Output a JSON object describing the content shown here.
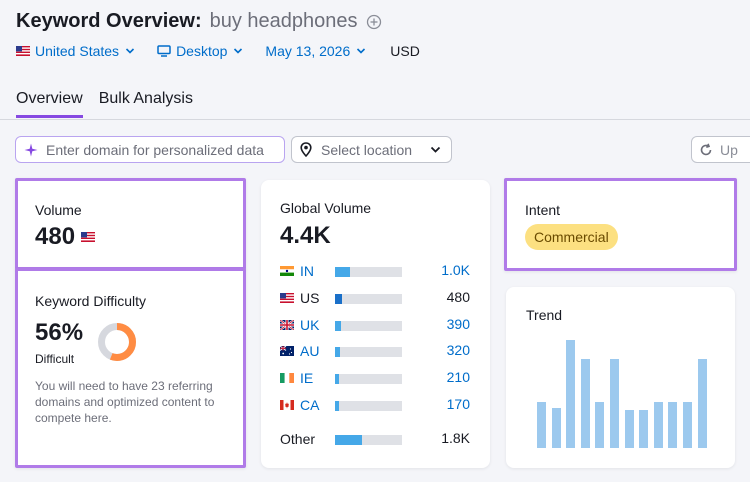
{
  "header": {
    "title": "Keyword Overview:",
    "keyword": "buy headphones",
    "filters": {
      "country": "United States",
      "device": "Desktop",
      "date": "May 13, 2026",
      "currency": "USD"
    }
  },
  "tabs": [
    {
      "label": "Overview",
      "active": true
    },
    {
      "label": "Bulk Analysis",
      "active": false
    }
  ],
  "controls": {
    "domain_placeholder": "Enter domain for personalized data",
    "location_placeholder": "Select location",
    "update_label": "Up"
  },
  "volume": {
    "label": "Volume",
    "value": "480"
  },
  "keyword_difficulty": {
    "label": "Keyword Difficulty",
    "value": "56%",
    "level": "Difficult",
    "fraction": 0.56,
    "description": "You will need to have 23 referring domains and optimized content to compete here."
  },
  "global_volume": {
    "label": "Global Volume",
    "value": "4.4K",
    "rows": [
      {
        "code": "IN",
        "value": "1.0K",
        "share": 0.23,
        "flag": "in",
        "linked": true
      },
      {
        "code": "US",
        "value": "480",
        "share": 0.11,
        "flag": "us",
        "linked": false
      },
      {
        "code": "UK",
        "value": "390",
        "share": 0.09,
        "flag": "uk",
        "linked": true
      },
      {
        "code": "AU",
        "value": "320",
        "share": 0.07,
        "flag": "au",
        "linked": true
      },
      {
        "code": "IE",
        "value": "210",
        "share": 0.05,
        "flag": "ie",
        "linked": true
      },
      {
        "code": "CA",
        "value": "170",
        "share": 0.04,
        "flag": "ca",
        "linked": true
      }
    ],
    "other": {
      "label": "Other",
      "value": "1.8K",
      "share": 0.41
    }
  },
  "intent": {
    "label": "Intent",
    "value": "Commercial"
  },
  "trend": {
    "label": "Trend",
    "values": [
      0.43,
      0.37,
      1.0,
      0.82,
      0.43,
      0.82,
      0.35,
      0.35,
      0.43,
      0.43,
      0.43,
      0.82
    ]
  },
  "colors": {
    "accent": "#8649e1",
    "link": "#006dca",
    "highlight": "#b07be8",
    "bar": "#45a8e8",
    "bar_dark": "#1a70c9",
    "trend_bar": "#9cc9ee",
    "badge": "#fce081"
  }
}
